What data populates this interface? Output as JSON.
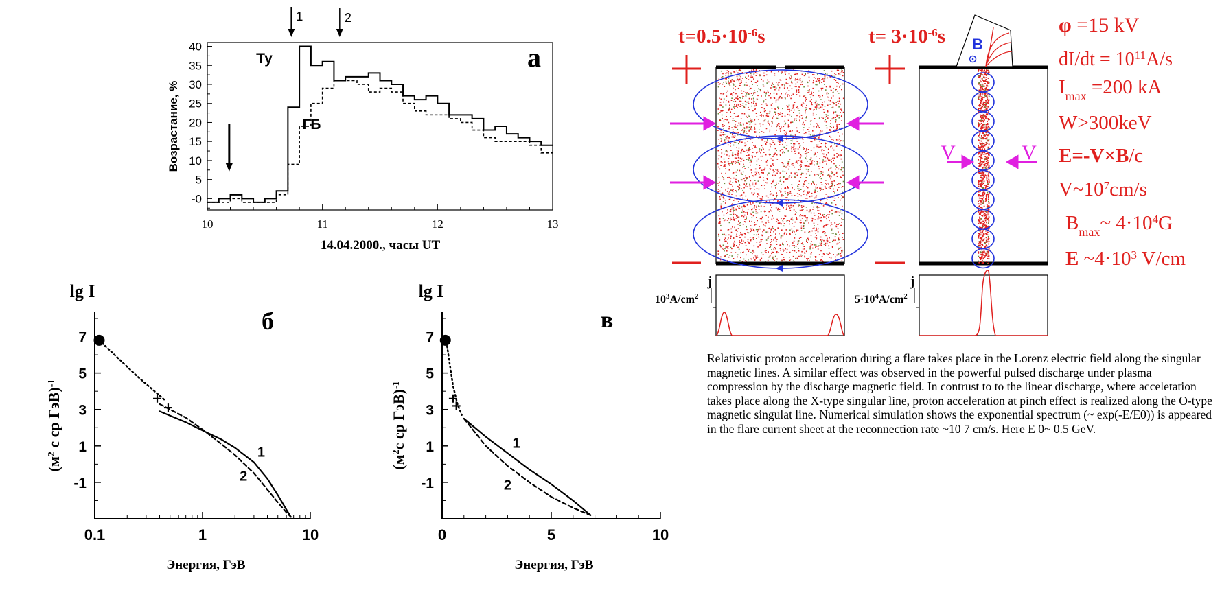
{
  "chart_data": [
    {
      "panel": "a",
      "type": "line",
      "panel_label": "а",
      "xlabel": "14.04.2000., часы UT",
      "ylabel": "Возрастание, %",
      "xlim": [
        10,
        13
      ],
      "ylim": [
        -3,
        41
      ],
      "x_ticks": [
        "10",
        "11",
        "12",
        "13"
      ],
      "y_ticks": [
        "-0",
        "5",
        "10",
        "15",
        "20",
        "25",
        "30",
        "35",
        "40"
      ],
      "series": [
        {
          "name": "Ту",
          "style": "solid-step",
          "x": [
            10.0,
            10.1,
            10.2,
            10.3,
            10.4,
            10.5,
            10.6,
            10.7,
            10.8,
            10.9,
            11.0,
            11.1,
            11.2,
            11.3,
            11.4,
            11.5,
            11.6,
            11.7,
            11.8,
            11.9,
            12.0,
            12.1,
            12.2,
            12.3,
            12.4,
            12.5,
            12.6,
            12.7,
            12.8,
            12.9
          ],
          "y": [
            -1,
            0,
            1,
            0,
            -1,
            0,
            2,
            24,
            40,
            35,
            36,
            31,
            32,
            32,
            33,
            31,
            30,
            27,
            26,
            27,
            25,
            22,
            22,
            21,
            18,
            19,
            17,
            16,
            15,
            14
          ]
        },
        {
          "name": "ГБ",
          "style": "dashed-step",
          "x": [
            10.0,
            10.1,
            10.2,
            10.3,
            10.4,
            10.5,
            10.6,
            10.7,
            10.8,
            10.9,
            11.0,
            11.1,
            11.2,
            11.3,
            11.4,
            11.5,
            11.6,
            11.7,
            11.8,
            11.9,
            12.0,
            12.1,
            12.2,
            12.3,
            12.4,
            12.5,
            12.6,
            12.7,
            12.8,
            12.9
          ],
          "y": [
            -1,
            -1,
            0,
            -1,
            -1,
            -1,
            1,
            9,
            19,
            25,
            29,
            31,
            31,
            30,
            28,
            29,
            28,
            25,
            23,
            22,
            22,
            21,
            20,
            18,
            16,
            15,
            15,
            15,
            14,
            12
          ]
        }
      ],
      "annotations": [
        {
          "text": "1",
          "x": 10.73,
          "y": 40,
          "type": "arrow"
        },
        {
          "text": "2",
          "x": 11.15,
          "y": 40,
          "type": "arrow"
        },
        {
          "text": "",
          "x": 10.19,
          "y": 2,
          "type": "arrow"
        }
      ]
    },
    {
      "panel": "b",
      "type": "line",
      "panel_label": "б",
      "title": "lg I",
      "xlabel": "Энергия, ГэВ",
      "ylabel": "(м2 с ср ГэВ)-1",
      "xscale": "log",
      "xlim": [
        0.1,
        10
      ],
      "ylim": [
        -3,
        8
      ],
      "x_ticks": [
        "0.1",
        "1",
        "10"
      ],
      "y_ticks": [
        "7",
        "5",
        "3",
        "1",
        "-1"
      ],
      "series": [
        {
          "name": "",
          "style": "dotted",
          "x": [
            0.11,
            0.25,
            0.45
          ],
          "y": [
            6.8,
            4.8,
            3.5
          ]
        },
        {
          "name": "1",
          "style": "solid",
          "x": [
            0.4,
            0.7,
            1.0,
            1.5,
            2,
            3,
            4,
            5,
            6,
            6.6
          ],
          "y": [
            2.9,
            2.3,
            1.85,
            1.35,
            0.9,
            0.1,
            -0.8,
            -1.7,
            -2.5,
            -2.9
          ]
        },
        {
          "name": "2",
          "style": "dashed",
          "x": [
            0.4,
            0.7,
            1.0,
            1.5,
            2,
            3,
            4,
            5,
            6,
            6.6
          ],
          "y": [
            3.3,
            2.55,
            1.9,
            1.1,
            0.5,
            -0.5,
            -1.4,
            -2.1,
            -2.65,
            -2.9
          ]
        },
        {
          "name": "",
          "style": "markers-plus",
          "x": [
            0.38,
            0.48
          ],
          "y": [
            3.6,
            3.1
          ]
        },
        {
          "name": "",
          "style": "marker-dot",
          "x": [
            0.11
          ],
          "y": [
            6.8
          ]
        }
      ],
      "annotations": [
        {
          "text": "1",
          "x": 3.5,
          "y": 0.4
        },
        {
          "text": "2",
          "x": 2.4,
          "y": -0.9
        }
      ]
    },
    {
      "panel": "v",
      "type": "line",
      "panel_label": "в",
      "title": "lg I",
      "xlabel": "Энергия, ГэВ",
      "ylabel": "(м2 с ср ГэВ)-1",
      "xlim": [
        0,
        10
      ],
      "ylim": [
        -3,
        8
      ],
      "x_ticks": [
        "0",
        "5",
        "10"
      ],
      "y_ticks": [
        "7",
        "5",
        "3",
        "1",
        "-1"
      ],
      "series": [
        {
          "name": "",
          "style": "dotted",
          "x": [
            0.2,
            0.35,
            0.5,
            0.7,
            0.9
          ],
          "y": [
            6.7,
            5.5,
            4.3,
            3.3,
            2.7
          ]
        },
        {
          "name": "1",
          "style": "solid",
          "x": [
            1,
            2,
            3,
            4,
            5,
            6,
            6.8
          ],
          "y": [
            2.5,
            1.5,
            0.6,
            -0.3,
            -1.1,
            -2.0,
            -2.8
          ]
        },
        {
          "name": "2",
          "style": "dashed",
          "x": [
            1,
            2,
            3,
            4,
            5,
            6,
            6.8
          ],
          "y": [
            2.5,
            1.0,
            -0.1,
            -1.0,
            -1.8,
            -2.4,
            -2.8
          ]
        },
        {
          "name": "",
          "style": "markers-plus",
          "x": [
            0.5,
            0.65
          ],
          "y": [
            3.6,
            3.2
          ]
        },
        {
          "name": "",
          "style": "marker-dot",
          "x": [
            0.15
          ],
          "y": [
            6.8
          ]
        }
      ],
      "annotations": [
        {
          "text": "1",
          "x": 3.4,
          "y": 0.9
        },
        {
          "text": "2",
          "x": 3.0,
          "y": -1.4
        }
      ]
    }
  ],
  "diagram": {
    "left_title": "t=0.5·10-6s",
    "right_title": "t= 3·10-6s",
    "b_label": "B",
    "v_left": "V",
    "v_right": "V",
    "j_label": "j",
    "j_left_scale": "103A/cm2",
    "j_right_scale": "5·104A/cm2",
    "params": [
      "φ =15 kV",
      "dI/dt = 1011A/s",
      "Imax =200 kA",
      "W>300keV",
      "E=-V×B/c",
      "V~107cm/s",
      "Bmax~ 4·104G",
      "E ~4·103 V/cm"
    ],
    "colors": {
      "red": "#e0201e",
      "blue": "#2233dd",
      "magenta": "#e020e0"
    }
  },
  "caption": "Relativistic proton acceleration during a flare takes place in the Lorenz electric field along the singular magnetic lines. A similar effect was observed in the powerful pulsed discharge under plasma compression by the discharge magnetic field. In contrust to to the linear discharge, where acceletation takes place along the X-type singular line, proton acceleration at pinch effect is realized along the O-type magnetic singulat line. Numerical simulation shows the exponential spectrum (~ exp(-E/E0)) is appeared in the flare current sheet at the reconnection rate ~10 7 cm/s. Here E 0~ 0.5 GeV."
}
